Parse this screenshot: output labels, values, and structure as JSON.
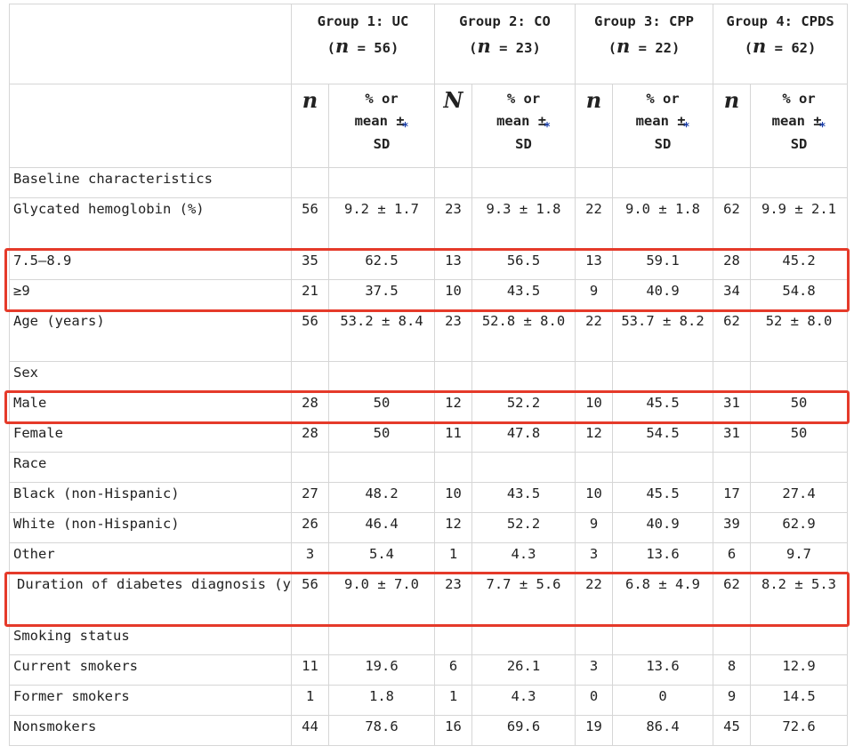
{
  "header": {
    "groups": [
      {
        "title": "Group 1: UC",
        "n_label": "n",
        "n_value": "= 56)"
      },
      {
        "title": "Group 2: CO",
        "n_label": "n",
        "n_value": "= 23)"
      },
      {
        "title": "Group 3: CPP",
        "n_label": "n",
        "n_value": "= 22)"
      },
      {
        "title": "Group 4: CPDS",
        "n_label": "n",
        "n_value": "= 62)"
      }
    ],
    "sub": {
      "n_cols": [
        "n",
        "N",
        "n",
        "n"
      ],
      "stat_col_a": "% or",
      "stat_col_b": "mean ±",
      "stat_col_c": "SD",
      "star": "*"
    }
  },
  "rows": [
    {
      "label": "Baseline characteristics",
      "vals": [
        "",
        "",
        "",
        "",
        "",
        "",
        "",
        ""
      ]
    },
    {
      "label": "Glycated hemoglobin (%)",
      "vals": [
        "56",
        "9.2 ± 1.7",
        "23",
        "9.3 ± 1.8",
        "22",
        "9.0 ± 1.8",
        "62",
        "9.9 ± 2.1"
      ]
    },
    {
      "label": "7.5–8.9",
      "vals": [
        "35",
        "62.5",
        "13",
        "56.5",
        "13",
        "59.1",
        "28",
        "45.2"
      ]
    },
    {
      "label": "≥9",
      "vals": [
        "21",
        "37.5",
        "10",
        "43.5",
        "9",
        "40.9",
        "34",
        "54.8"
      ]
    },
    {
      "label": "Age (years)",
      "vals": [
        "56",
        "53.2 ± 8.4",
        "23",
        "52.8 ± 8.0",
        "22",
        "53.7 ± 8.2",
        "62",
        "52 ± 8.0"
      ]
    },
    {
      "label": "Sex",
      "vals": [
        "",
        "",
        "",
        "",
        "",
        "",
        "",
        ""
      ]
    },
    {
      "label": "Male",
      "vals": [
        "28",
        "50",
        "12",
        "52.2",
        "10",
        "45.5",
        "31",
        "50"
      ]
    },
    {
      "label": "Female",
      "vals": [
        "28",
        "50",
        "11",
        "47.8",
        "12",
        "54.5",
        "31",
        "50"
      ]
    },
    {
      "label": "Race",
      "vals": [
        "",
        "",
        "",
        "",
        "",
        "",
        "",
        ""
      ]
    },
    {
      "label": "Black (non-Hispanic)",
      "vals": [
        "27",
        "48.2",
        "10",
        "43.5",
        "10",
        "45.5",
        "17",
        "27.4"
      ]
    },
    {
      "label": "White (non-Hispanic)",
      "vals": [
        "26",
        "46.4",
        "12",
        "52.2",
        "9",
        "40.9",
        "39",
        "62.9"
      ]
    },
    {
      "label": "Other",
      "vals": [
        "3",
        "5.4",
        "1",
        "4.3",
        "3",
        "13.6",
        "6",
        "9.7"
      ]
    },
    {
      "label": "Duration of diabetes diagnosis (years)",
      "vals": [
        "56",
        "9.0 ± 7.0",
        "23",
        "7.7 ± 5.6",
        "22",
        "6.8 ± 4.9",
        "62",
        "8.2 ± 5.3"
      ]
    },
    {
      "label": "Smoking status",
      "vals": [
        "",
        "",
        "",
        "",
        "",
        "",
        "",
        ""
      ]
    },
    {
      "label": "Current smokers",
      "vals": [
        "11",
        "19.6",
        "6",
        "26.1",
        "3",
        "13.6",
        "8",
        "12.9"
      ]
    },
    {
      "label": "Former smokers",
      "vals": [
        "1",
        "1.8",
        "1",
        "4.3",
        "0",
        "0",
        "9",
        "14.5"
      ]
    },
    {
      "label": "Nonsmokers",
      "vals": [
        "44",
        "78.6",
        "16",
        "69.6",
        "19",
        "86.4",
        "45",
        "72.6"
      ]
    }
  ],
  "colors": {
    "highlight": "#e53a2a",
    "grid": "#d6d6d6",
    "star": "#1a3ea8"
  }
}
